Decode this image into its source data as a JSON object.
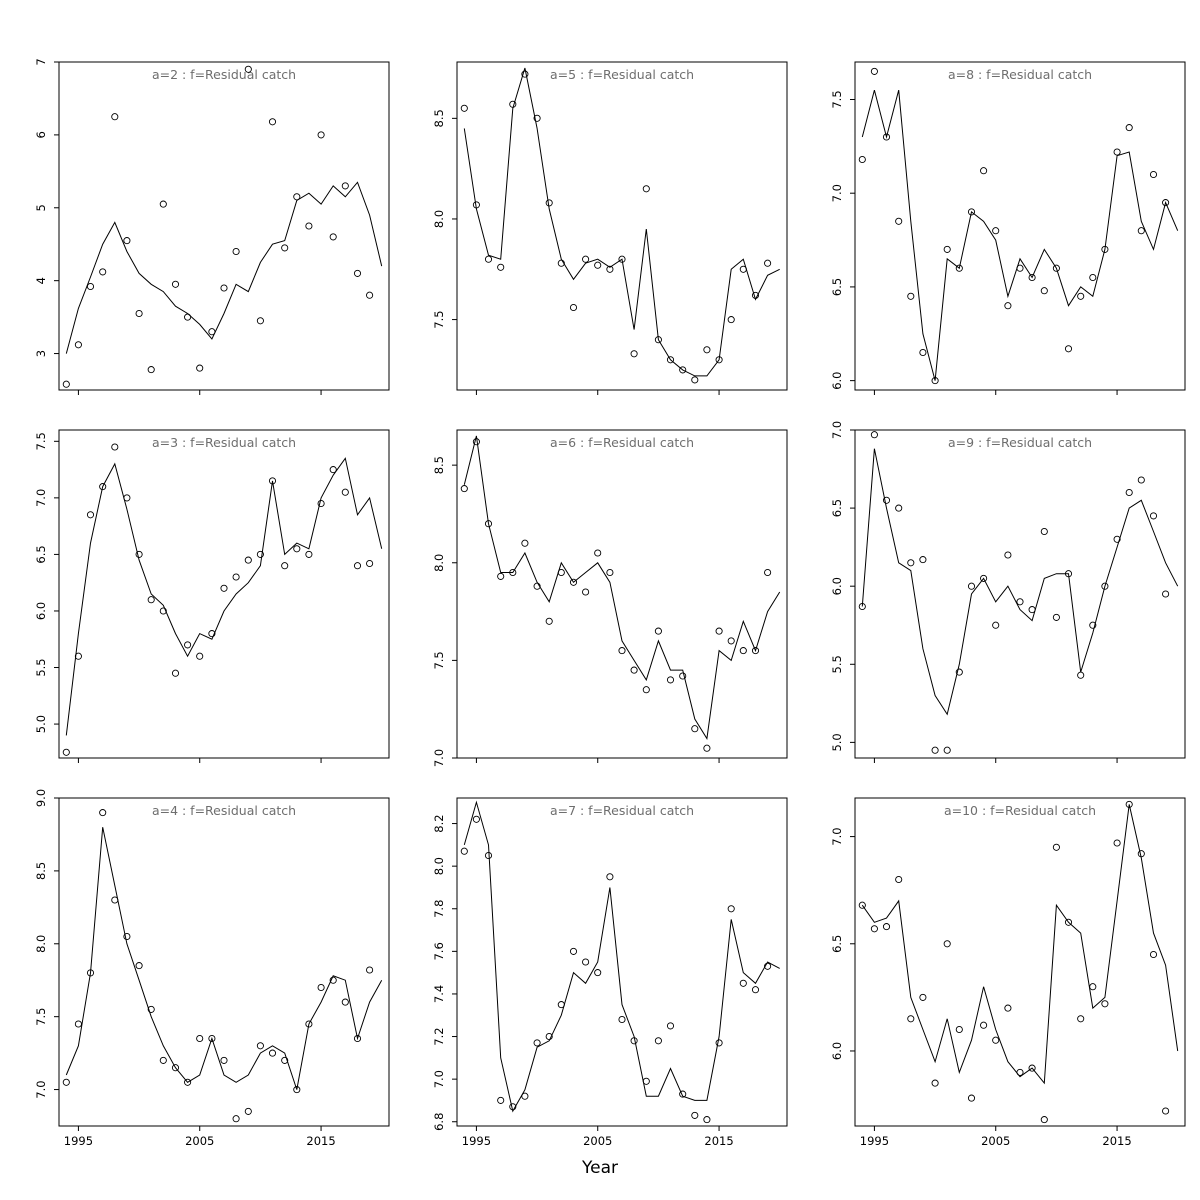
{
  "figure": {
    "xlabel": "Year",
    "x_tick_labels": [
      "1995",
      "2005",
      "2015"
    ],
    "x_tick_years": [
      1995,
      2005,
      2015
    ],
    "x_domain": [
      1993.4,
      2020.6
    ],
    "title_color": "#6e6e6e",
    "axis_color": "#000000",
    "point_style": "open-circle",
    "line_style": "solid",
    "years_points": [
      1994,
      1995,
      1996,
      1997,
      1998,
      1999,
      2000,
      2001,
      2002,
      2003,
      2004,
      2005,
      2006,
      2007,
      2008,
      2009,
      2010,
      2011,
      2012,
      2013,
      2014,
      2015,
      2016,
      2017,
      2018,
      2019
    ],
    "years_line": [
      1994,
      1995,
      1996,
      1997,
      1998,
      1999,
      2000,
      2001,
      2002,
      2003,
      2004,
      2005,
      2006,
      2007,
      2008,
      2009,
      2010,
      2011,
      2012,
      2013,
      2014,
      2015,
      2016,
      2017,
      2018,
      2019,
      2020
    ]
  },
  "chart_data": [
    {
      "type": "scatter",
      "title": "a=2  :  f=Residual catch",
      "ylim": [
        2.5,
        7.0
      ],
      "yticks": [
        3,
        4,
        5,
        6,
        7
      ],
      "ytick_labels": [
        "3",
        "4",
        "5",
        "6",
        "7"
      ],
      "points_y": [
        2.58,
        3.12,
        3.92,
        4.12,
        6.25,
        4.55,
        3.55,
        2.78,
        5.05,
        3.95,
        3.5,
        2.8,
        3.3,
        3.9,
        4.4,
        6.9,
        3.45,
        6.18,
        4.45,
        5.15,
        4.75,
        6.0,
        4.6,
        5.3,
        4.1,
        3.8
      ],
      "line_y": [
        3.0,
        3.62,
        4.05,
        4.5,
        4.8,
        4.4,
        4.1,
        3.95,
        3.85,
        3.65,
        3.55,
        3.4,
        3.2,
        3.55,
        3.95,
        3.85,
        4.25,
        4.5,
        4.55,
        5.1,
        5.2,
        5.05,
        5.3,
        5.15,
        5.35,
        4.9,
        4.2
      ]
    },
    {
      "type": "scatter",
      "title": "a=5  :  f=Residual catch",
      "ylim": [
        7.15,
        8.78
      ],
      "yticks": [
        7.5,
        8.0,
        8.5
      ],
      "ytick_labels": [
        "7.5",
        "8.0",
        "8.5"
      ],
      "points_y": [
        8.55,
        8.07,
        7.8,
        7.76,
        8.57,
        8.72,
        8.5,
        8.08,
        7.78,
        7.56,
        7.8,
        7.77,
        7.75,
        7.8,
        7.33,
        8.15,
        7.4,
        7.3,
        7.25,
        7.2,
        7.35,
        7.3,
        7.5,
        7.75,
        7.62,
        7.78
      ],
      "line_y": [
        8.45,
        8.05,
        7.82,
        7.8,
        8.55,
        8.75,
        8.45,
        8.05,
        7.8,
        7.7,
        7.78,
        7.8,
        7.76,
        7.8,
        7.45,
        7.95,
        7.4,
        7.3,
        7.25,
        7.22,
        7.22,
        7.3,
        7.75,
        7.8,
        7.6,
        7.72,
        7.75
      ]
    },
    {
      "type": "scatter",
      "title": "a=8  :  f=Residual catch",
      "ylim": [
        5.95,
        7.7
      ],
      "yticks": [
        6.0,
        6.5,
        7.0,
        7.5
      ],
      "ytick_labels": [
        "6.0",
        "6.5",
        "7.0",
        "7.5"
      ],
      "points_y": [
        7.18,
        7.65,
        7.3,
        6.85,
        6.45,
        6.15,
        6.0,
        6.7,
        6.6,
        6.9,
        7.12,
        6.8,
        6.4,
        6.6,
        6.55,
        6.48,
        6.6,
        6.17,
        6.45,
        6.55,
        6.7,
        7.22,
        7.35,
        6.8,
        7.1,
        6.95
      ],
      "line_y": [
        7.3,
        7.55,
        7.3,
        7.55,
        6.85,
        6.25,
        6.0,
        6.65,
        6.6,
        6.9,
        6.85,
        6.75,
        6.45,
        6.65,
        6.55,
        6.7,
        6.6,
        6.4,
        6.5,
        6.45,
        6.7,
        7.2,
        7.22,
        6.85,
        6.7,
        6.95,
        6.8
      ]
    },
    {
      "type": "scatter",
      "title": "a=3  :  f=Residual catch",
      "ylim": [
        4.7,
        7.6
      ],
      "yticks": [
        5.0,
        5.5,
        6.0,
        6.5,
        7.0,
        7.5
      ],
      "ytick_labels": [
        "5.0",
        "5.5",
        "6.0",
        "6.5",
        "7.0",
        "7.5"
      ],
      "points_y": [
        4.75,
        5.6,
        6.85,
        7.1,
        7.45,
        7.0,
        6.5,
        6.1,
        6.0,
        5.45,
        5.7,
        5.6,
        5.8,
        6.2,
        6.3,
        6.45,
        6.5,
        7.15,
        6.4,
        6.55,
        6.5,
        6.95,
        7.25,
        7.05,
        6.4,
        6.42
      ],
      "line_y": [
        4.9,
        5.8,
        6.6,
        7.1,
        7.3,
        6.9,
        6.45,
        6.15,
        6.05,
        5.8,
        5.6,
        5.8,
        5.75,
        6.0,
        6.15,
        6.25,
        6.4,
        7.15,
        6.5,
        6.6,
        6.55,
        7.0,
        7.2,
        7.35,
        6.85,
        7.0,
        6.55
      ]
    },
    {
      "type": "scatter",
      "title": "a=6  :  f=Residual catch",
      "ylim": [
        7.0,
        8.68
      ],
      "yticks": [
        7.0,
        7.5,
        8.0,
        8.5
      ],
      "ytick_labels": [
        "7.0",
        "7.5",
        "8.0",
        "8.5"
      ],
      "points_y": [
        8.38,
        8.62,
        8.2,
        7.93,
        7.95,
        8.1,
        7.88,
        7.7,
        7.95,
        7.9,
        7.85,
        8.05,
        7.95,
        7.55,
        7.45,
        7.35,
        7.65,
        7.4,
        7.42,
        7.15,
        7.05,
        7.65,
        7.6,
        7.55,
        7.55,
        7.95
      ],
      "line_y": [
        8.4,
        8.65,
        8.2,
        7.95,
        7.95,
        8.05,
        7.9,
        7.8,
        8.0,
        7.9,
        7.95,
        8.0,
        7.9,
        7.6,
        7.5,
        7.4,
        7.6,
        7.45,
        7.45,
        7.2,
        7.1,
        7.55,
        7.5,
        7.7,
        7.55,
        7.75,
        7.85
      ]
    },
    {
      "type": "scatter",
      "title": "a=9  :  f=Residual catch",
      "ylim": [
        4.9,
        7.0
      ],
      "yticks": [
        5.0,
        5.5,
        6.0,
        6.5,
        7.0
      ],
      "ytick_labels": [
        "5.0",
        "5.5",
        "6.0",
        "6.5",
        "7.0"
      ],
      "points_y": [
        5.87,
        6.97,
        6.55,
        6.5,
        6.15,
        6.17,
        4.95,
        4.95,
        5.45,
        6.0,
        6.05,
        5.75,
        6.2,
        5.9,
        5.85,
        6.35,
        5.8,
        6.08,
        5.43,
        5.75,
        6.0,
        6.3,
        6.6,
        6.68,
        6.45,
        5.95
      ],
      "line_y": [
        5.87,
        6.88,
        6.5,
        6.15,
        6.1,
        5.6,
        5.3,
        5.18,
        5.5,
        5.95,
        6.05,
        5.9,
        6.0,
        5.85,
        5.78,
        6.05,
        6.08,
        6.08,
        5.45,
        5.7,
        6.0,
        6.25,
        6.5,
        6.55,
        6.35,
        6.15,
        6.0
      ]
    },
    {
      "type": "scatter",
      "title": "a=4  :  f=Residual catch",
      "ylim": [
        6.75,
        9.0
      ],
      "yticks": [
        7.0,
        7.5,
        8.0,
        8.5,
        9.0
      ],
      "ytick_labels": [
        "7.0",
        "7.5",
        "8.0",
        "8.5",
        "9.0"
      ],
      "points_y": [
        7.05,
        7.45,
        7.8,
        8.9,
        8.3,
        8.05,
        7.85,
        7.55,
        7.2,
        7.15,
        7.05,
        7.35,
        7.35,
        7.2,
        6.8,
        6.85,
        7.3,
        7.25,
        7.2,
        7.0,
        7.45,
        7.7,
        7.75,
        7.6,
        7.35,
        7.82
      ],
      "line_y": [
        7.1,
        7.3,
        7.8,
        8.8,
        8.4,
        8.0,
        7.75,
        7.5,
        7.3,
        7.15,
        7.05,
        7.1,
        7.35,
        7.1,
        7.05,
        7.1,
        7.25,
        7.3,
        7.25,
        7.0,
        7.45,
        7.6,
        7.78,
        7.75,
        7.35,
        7.6,
        7.75
      ]
    },
    {
      "type": "scatter",
      "title": "a=7  :  f=Residual catch",
      "ylim": [
        6.78,
        8.32
      ],
      "yticks": [
        6.8,
        7.0,
        7.2,
        7.4,
        7.6,
        7.8,
        8.0,
        8.2
      ],
      "ytick_labels": [
        "6.8",
        "7.0",
        "7.2",
        "7.4",
        "7.6",
        "7.8",
        "8.0",
        "8.2"
      ],
      "points_y": [
        8.07,
        8.22,
        8.05,
        6.9,
        6.87,
        6.92,
        7.17,
        7.2,
        7.35,
        7.6,
        7.55,
        7.5,
        7.95,
        7.28,
        7.18,
        6.99,
        7.18,
        7.25,
        6.93,
        6.83,
        6.81,
        7.17,
        7.8,
        7.45,
        7.42,
        7.53
      ],
      "line_y": [
        8.1,
        8.3,
        8.1,
        7.1,
        6.85,
        6.95,
        7.15,
        7.18,
        7.3,
        7.5,
        7.45,
        7.55,
        7.9,
        7.35,
        7.2,
        6.92,
        6.92,
        7.05,
        6.92,
        6.9,
        6.9,
        7.2,
        7.75,
        7.5,
        7.45,
        7.55,
        7.52
      ]
    },
    {
      "type": "scatter",
      "title": "a=10  :  f=Residual catch",
      "ylim": [
        5.65,
        7.18
      ],
      "yticks": [
        6.0,
        6.5,
        7.0
      ],
      "ytick_labels": [
        "6.0",
        "6.5",
        "7.0"
      ],
      "points_y": [
        6.68,
        6.57,
        6.58,
        6.8,
        6.15,
        6.25,
        5.85,
        6.5,
        6.1,
        5.78,
        6.12,
        6.05,
        6.2,
        5.9,
        5.92,
        5.68,
        6.95,
        6.6,
        6.15,
        6.3,
        6.22,
        6.97,
        7.15,
        6.92,
        6.45,
        5.72
      ],
      "line_y": [
        6.68,
        6.6,
        6.62,
        6.7,
        6.25,
        6.1,
        5.95,
        6.15,
        5.9,
        6.05,
        6.3,
        6.1,
        5.95,
        5.88,
        5.92,
        5.85,
        6.68,
        6.6,
        6.55,
        6.2,
        6.25,
        6.7,
        7.15,
        6.9,
        6.55,
        6.4,
        6.0
      ]
    }
  ]
}
